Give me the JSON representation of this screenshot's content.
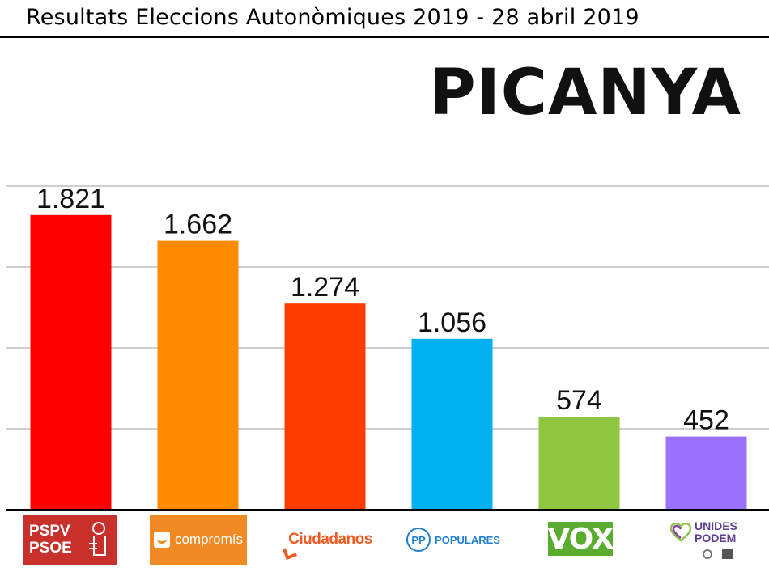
{
  "header": {
    "title": "Resultats Eleccions Autonòmiques 2019 - 28 abril 2019",
    "municipality": "PICANYA"
  },
  "chart_data": {
    "type": "bar",
    "title": "",
    "xlabel": "",
    "ylabel": "",
    "ylim": [
      0,
      2000
    ],
    "grid": true,
    "gridlines": [
      500,
      1000,
      1500,
      2000
    ],
    "categories": [
      "PSPV PSOE",
      "compromís",
      "Ciudadanos",
      "PP POPULARES",
      "VOX",
      "UNIDES PODEM"
    ],
    "values": [
      1821,
      1662,
      1274,
      1056,
      574,
      452
    ],
    "value_labels": [
      "1.821",
      "1.662",
      "1.274",
      "1.056",
      "574",
      "452"
    ],
    "colors": [
      "#ff0000",
      "#ff8c00",
      "#ff3c00",
      "#00b0f0",
      "#8ec63f",
      "#9b72ff"
    ]
  },
  "logos": {
    "psoe": {
      "line1": "PSPV",
      "line2": "PSOE",
      "icon": "rose-icon",
      "color": "#c8302c"
    },
    "compromis": {
      "text": "compromís",
      "icon": "smile-icon",
      "color": "#f08a24"
    },
    "ciudadanos": {
      "text": "Ciudadanos",
      "color": "#ef5b22"
    },
    "pp": {
      "mark": "PP",
      "text": "POPULARES",
      "color": "#1f7fd0"
    },
    "vox": {
      "text": "VOX",
      "color": "#5aac2f"
    },
    "unides_podem": {
      "line1": "UNIDES",
      "line2": "PODEM",
      "icon": "heart-icon",
      "color": "#5e3f8e"
    }
  }
}
